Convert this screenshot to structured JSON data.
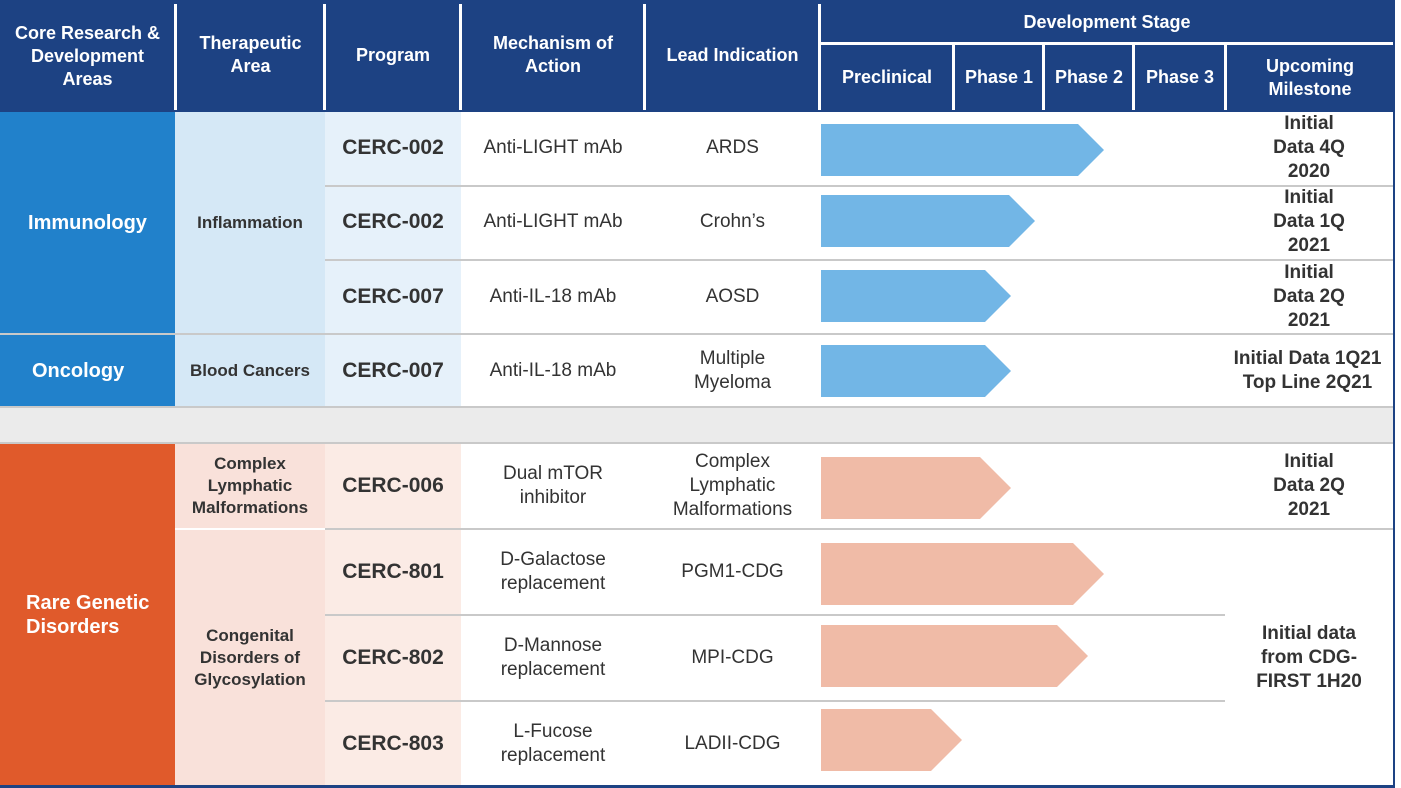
{
  "header": {
    "core_areas": "Core Research & Development Areas",
    "therapeutic_area": "Therapeutic Area",
    "program": "Program",
    "mechanism": "Mechanism of Action",
    "lead_indication": "Lead Indication",
    "development_stage": "Development Stage",
    "stages": [
      "Preclinical",
      "Phase 1",
      "Phase 2",
      "Phase 3"
    ],
    "upcoming_milestone": "Upcoming Milestone"
  },
  "areas": {
    "immunology": "Immunology",
    "oncology": "Oncology",
    "rare": "Rare Genetic Disorders"
  },
  "therapeutic_areas": {
    "inflammation": "Inflammation",
    "blood_cancers": "Blood Cancers",
    "clm": "Complex Lymphatic Malformations",
    "cdg": "Congenital Disorders of Glycosylation"
  },
  "rows": [
    {
      "program": "CERC-002",
      "mechanism": "Anti-LIGHT mAb",
      "indication": "ARDS",
      "milestone": "Initial Data 4Q 2020",
      "progress": 0.7
    },
    {
      "program": "CERC-002",
      "mechanism": "Anti-LIGHT mAb",
      "indication": "Crohn’s",
      "milestone": "Initial Data 1Q 2021",
      "progress": 0.53
    },
    {
      "program": "CERC-007",
      "mechanism": "Anti-IL-18 mAb",
      "indication": "AOSD",
      "milestone": "Initial Data 2Q 2021",
      "progress": 0.47
    },
    {
      "program": "CERC-007",
      "mechanism": "Anti-IL-18 mAb",
      "indication": "Multiple Myeloma",
      "milestone": "Initial Data 1Q21 Top Line 2Q21",
      "progress": 0.47
    },
    {
      "program": "CERC-006",
      "mechanism": "Dual mTOR inhibitor",
      "indication": "Complex Lymphatic Malformations",
      "milestone": "Initial Data 2Q 2021",
      "progress": 0.47
    },
    {
      "program": "CERC-801",
      "mechanism": "D-Galactose replacement",
      "indication": "PGM1-CDG",
      "progress": 0.7
    },
    {
      "program": "CERC-802",
      "mechanism": "D-Mannose replacement",
      "indication": "MPI-CDG",
      "progress": 0.66
    },
    {
      "program": "CERC-803",
      "mechanism": "L-Fucose replacement",
      "indication": "LADII-CDG",
      "progress": 0.35
    }
  ],
  "cdg_milestone": "Initial data from CDG-FIRST 1H20",
  "colors": {
    "header": "#1d4283",
    "immunology": "#2181cb",
    "immunology_light": "#d5e8f6",
    "rare": "#e05a2b",
    "rare_light": "#f9e1da",
    "arrow_blue": "#72b6e6",
    "arrow_salmon": "#f0bba7"
  }
}
